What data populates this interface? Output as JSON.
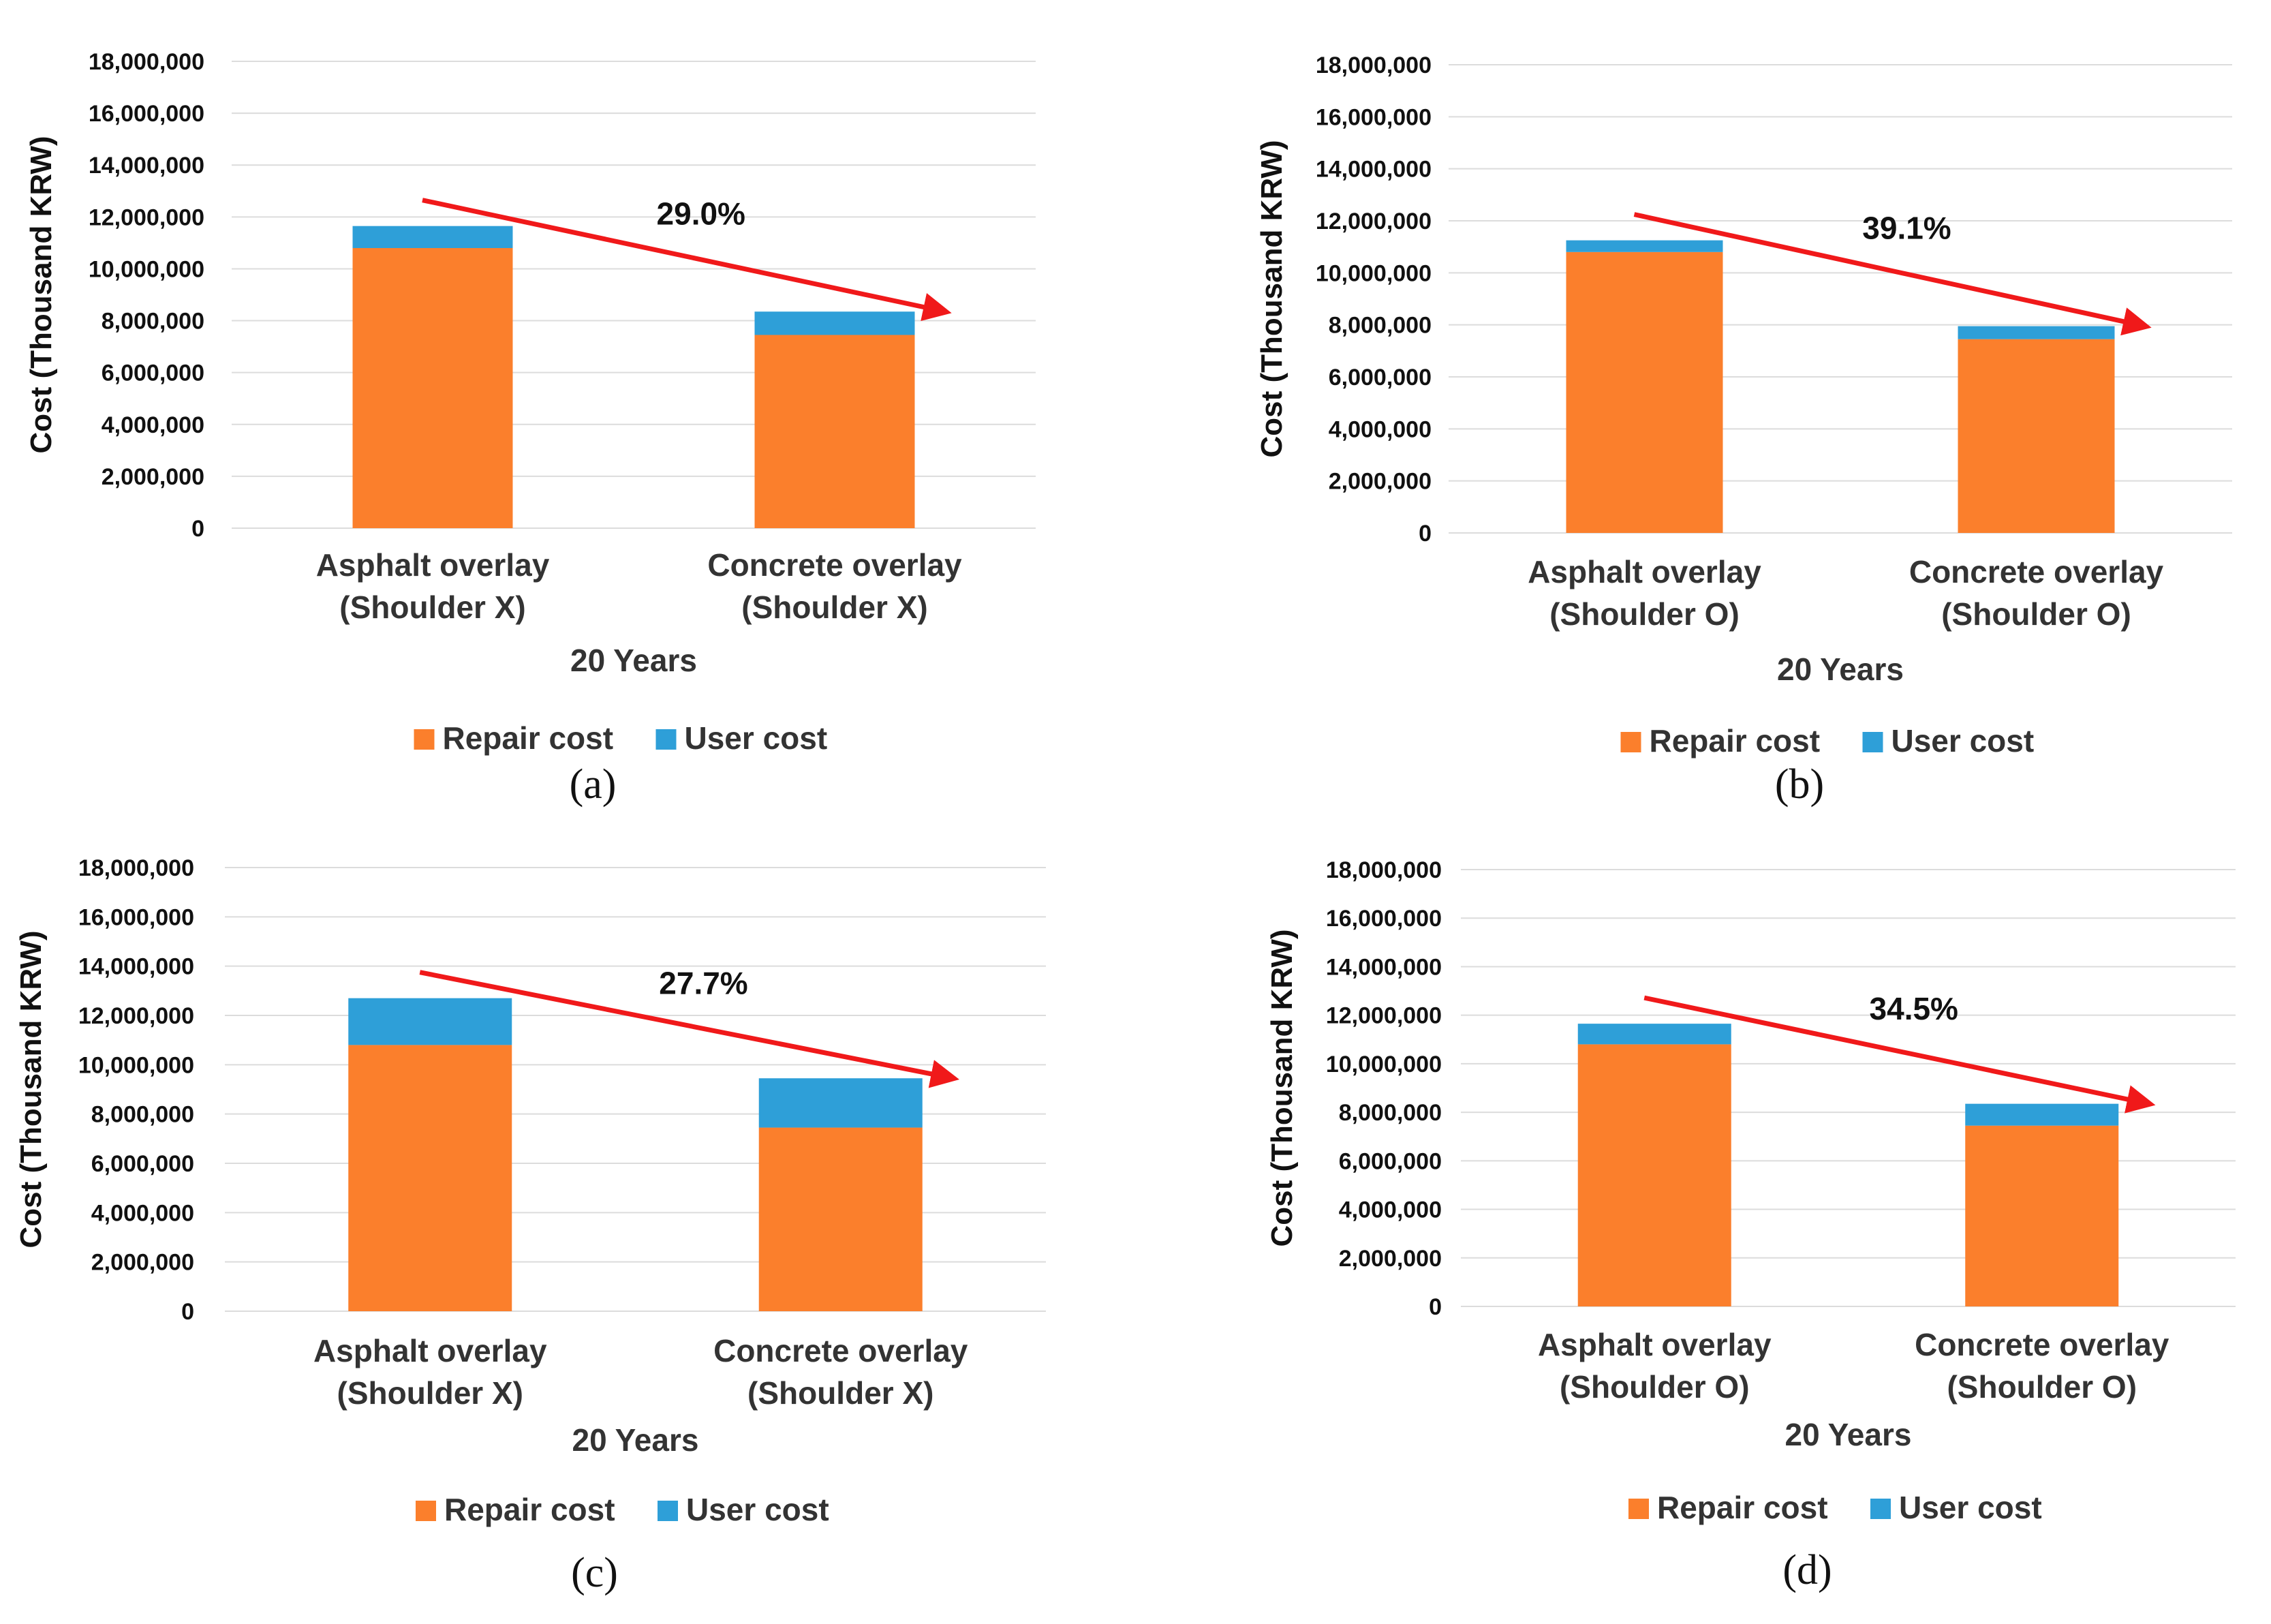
{
  "chart_data": [
    {
      "type": "bar",
      "stacked": true,
      "panel_label": "a",
      "categories": [
        "Asphalt overlay\n(Shoulder X)",
        "Concrete overlay\n(Shoulder X)"
      ],
      "series": [
        {
          "name": "Repair cost",
          "values": [
            10800000,
            7450000
          ]
        },
        {
          "name": "User cost",
          "values": [
            850000,
            900000
          ]
        }
      ],
      "title": "",
      "xlabel": "20 Years",
      "ylabel": "Cost (Thousand KRW)",
      "ylim": [
        0,
        18000000
      ],
      "yticks": [
        "0",
        "2,000,000",
        "4,000,000",
        "6,000,000",
        "8,000,000",
        "10,000,000",
        "12,000,000",
        "14,000,000",
        "16,000,000",
        "18,000,000"
      ],
      "annotation": "29.0%",
      "legend": "bottom"
    },
    {
      "type": "bar",
      "stacked": true,
      "panel_label": "b",
      "categories": [
        "Asphalt overlay\n(Shoulder O)",
        "Concrete overlay\n(Shoulder O)"
      ],
      "series": [
        {
          "name": "Repair cost",
          "values": [
            10800000,
            7450000
          ]
        },
        {
          "name": "User cost",
          "values": [
            450000,
            500000
          ]
        }
      ],
      "title": "",
      "xlabel": "20 Years",
      "ylabel": "Cost (Thousand KRW)",
      "ylim": [
        0,
        18000000
      ],
      "yticks": [
        "0",
        "2,000,000",
        "4,000,000",
        "6,000,000",
        "8,000,000",
        "10,000,000",
        "12,000,000",
        "14,000,000",
        "16,000,000",
        "18,000,000"
      ],
      "annotation": "39.1%",
      "legend": "bottom"
    },
    {
      "type": "bar",
      "stacked": true,
      "panel_label": "c",
      "categories": [
        "Asphalt overlay\n(Shoulder X)",
        "Concrete overlay\n(Shoulder X)"
      ],
      "series": [
        {
          "name": "Repair cost",
          "values": [
            10800000,
            7450000
          ]
        },
        {
          "name": "User cost",
          "values": [
            1900000,
            2000000
          ]
        }
      ],
      "title": "",
      "xlabel": "20 Years",
      "ylabel": "Cost (Thousand KRW)",
      "ylim": [
        0,
        18000000
      ],
      "yticks": [
        "0",
        "2,000,000",
        "4,000,000",
        "6,000,000",
        "8,000,000",
        "10,000,000",
        "12,000,000",
        "14,000,000",
        "16,000,000",
        "18,000,000"
      ],
      "annotation": "27.7%",
      "legend": "bottom"
    },
    {
      "type": "bar",
      "stacked": true,
      "panel_label": "d",
      "categories": [
        "Asphalt overlay\n(Shoulder O)",
        "Concrete overlay\n(Shoulder O)"
      ],
      "series": [
        {
          "name": "Repair cost",
          "values": [
            10800000,
            7450000
          ]
        },
        {
          "name": "User cost",
          "values": [
            850000,
            900000
          ]
        }
      ],
      "title": "",
      "xlabel": "20 Years",
      "ylabel": "Cost (Thousand KRW)",
      "ylim": [
        0,
        18000000
      ],
      "yticks": [
        "0",
        "2,000,000",
        "4,000,000",
        "6,000,000",
        "8,000,000",
        "10,000,000",
        "12,000,000",
        "14,000,000",
        "16,000,000",
        "18,000,000"
      ],
      "annotation": "34.5%",
      "legend": "bottom"
    }
  ],
  "colors": {
    "repair": "#fb7f2c",
    "user": "#2e9fd8",
    "arrow": "#f0191a",
    "grid": "#dcdcdc"
  }
}
